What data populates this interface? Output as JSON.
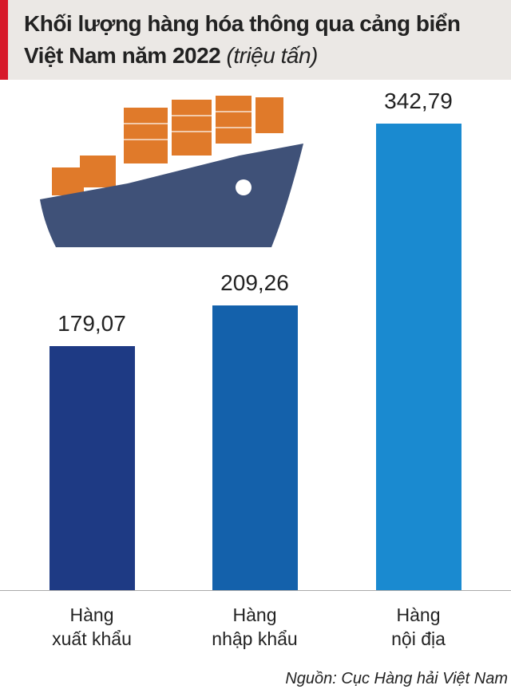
{
  "chart_data": {
    "type": "bar",
    "title": "Khối lượng hàng hóa thông qua cảng biển Việt Nam năm 2022",
    "unit": "(triệu tấn)",
    "categories": [
      "Hàng xuất khẩu",
      "Hàng nhập khẩu",
      "Hàng nội địa"
    ],
    "values": [
      179.07,
      209.26,
      342.79
    ],
    "value_labels": [
      "179,07",
      "209,26",
      "342,79"
    ],
    "colors": [
      "#1e3a84",
      "#1461ab",
      "#1a8ad0"
    ],
    "source": "Nguồn: Cục Hàng hải Việt Nam"
  }
}
